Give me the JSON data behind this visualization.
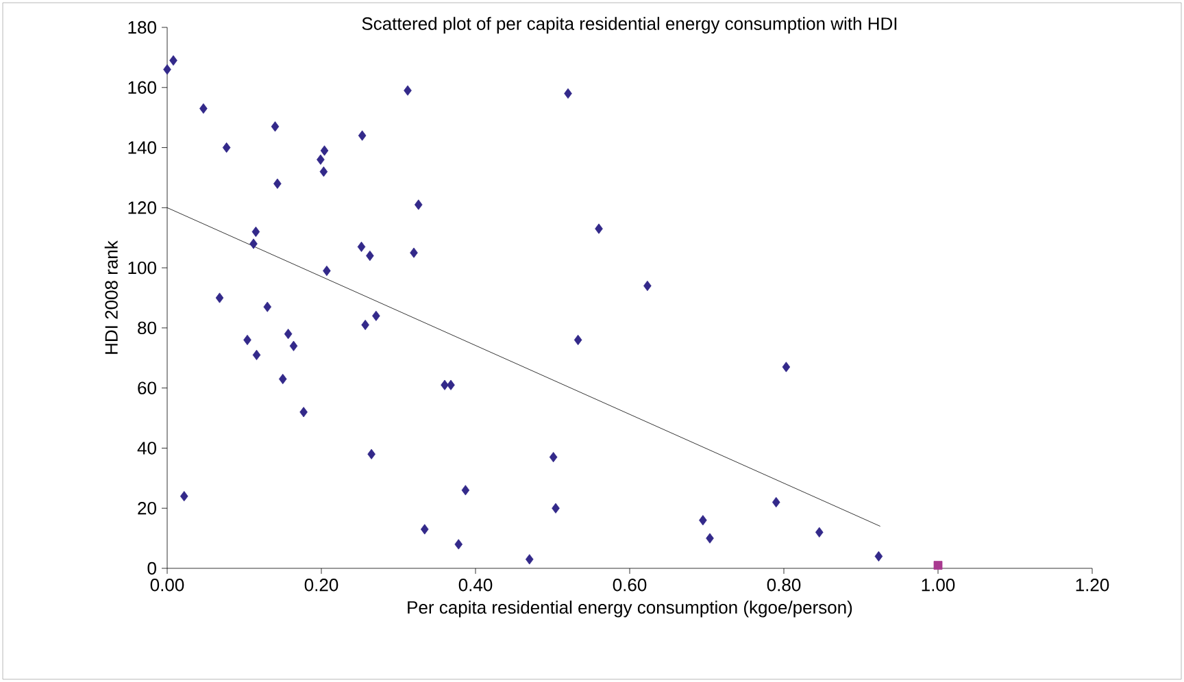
{
  "chart_data": {
    "type": "scatter",
    "title": "Scattered plot of per capita residential energy consumption with HDI",
    "xlabel": "Per capita residential energy consumption (kgoe/person)",
    "ylabel": "HDI 2008 rank",
    "xlim": [
      0,
      1.2
    ],
    "ylim": [
      0,
      180
    ],
    "xticks": [
      {
        "value": 0,
        "label": "0.00"
      },
      {
        "value": 0.2,
        "label": "0.20"
      },
      {
        "value": 0.4,
        "label": "0.40"
      },
      {
        "value": 0.6,
        "label": "0.60"
      },
      {
        "value": 0.8,
        "label": "0.80"
      },
      {
        "value": 1.0,
        "label": "1.00"
      },
      {
        "value": 1.2,
        "label": "1.20"
      }
    ],
    "yticks": [
      0,
      20,
      40,
      60,
      80,
      100,
      120,
      140,
      160,
      180
    ],
    "grid": false,
    "series": [
      {
        "marker": "diamond",
        "color": "#33298a",
        "x": [
          0,
          0.008,
          0.022,
          0.047,
          0.068,
          0.077,
          0.104,
          0.112,
          0.115,
          0.116,
          0.13,
          0.14,
          0.143,
          0.15,
          0.157,
          0.164,
          0.177,
          0.199,
          0.204,
          0.203,
          0.207,
          0.252,
          0.253,
          0.257,
          0.263,
          0.265,
          0.271,
          0.312,
          0.32,
          0.326,
          0.334,
          0.36,
          0.368,
          0.378,
          0.387,
          0.47,
          0.501,
          0.504,
          0.52,
          0.533,
          0.56,
          0.623,
          0.695,
          0.704,
          0.79,
          0.803,
          0.846,
          0.923
        ],
        "values": [
          166,
          169,
          24,
          153,
          90,
          140,
          76,
          108,
          112,
          71,
          87,
          147,
          128,
          63,
          78,
          74,
          52,
          136,
          139,
          132,
          99,
          107,
          144,
          81,
          104,
          38,
          84,
          159,
          105,
          121,
          13,
          61,
          61,
          8,
          26,
          3,
          37,
          20,
          158,
          76,
          113,
          94,
          16,
          10,
          22,
          67,
          12,
          4
        ]
      },
      {
        "marker": "square",
        "color": "#a8398f",
        "x": [
          1.0
        ],
        "values": [
          1
        ]
      },
      {
        "type": "line",
        "marker": "none",
        "line_style": "solid",
        "color": "#000000",
        "x": [
          0,
          0.925
        ],
        "values": [
          120,
          14
        ]
      }
    ]
  }
}
